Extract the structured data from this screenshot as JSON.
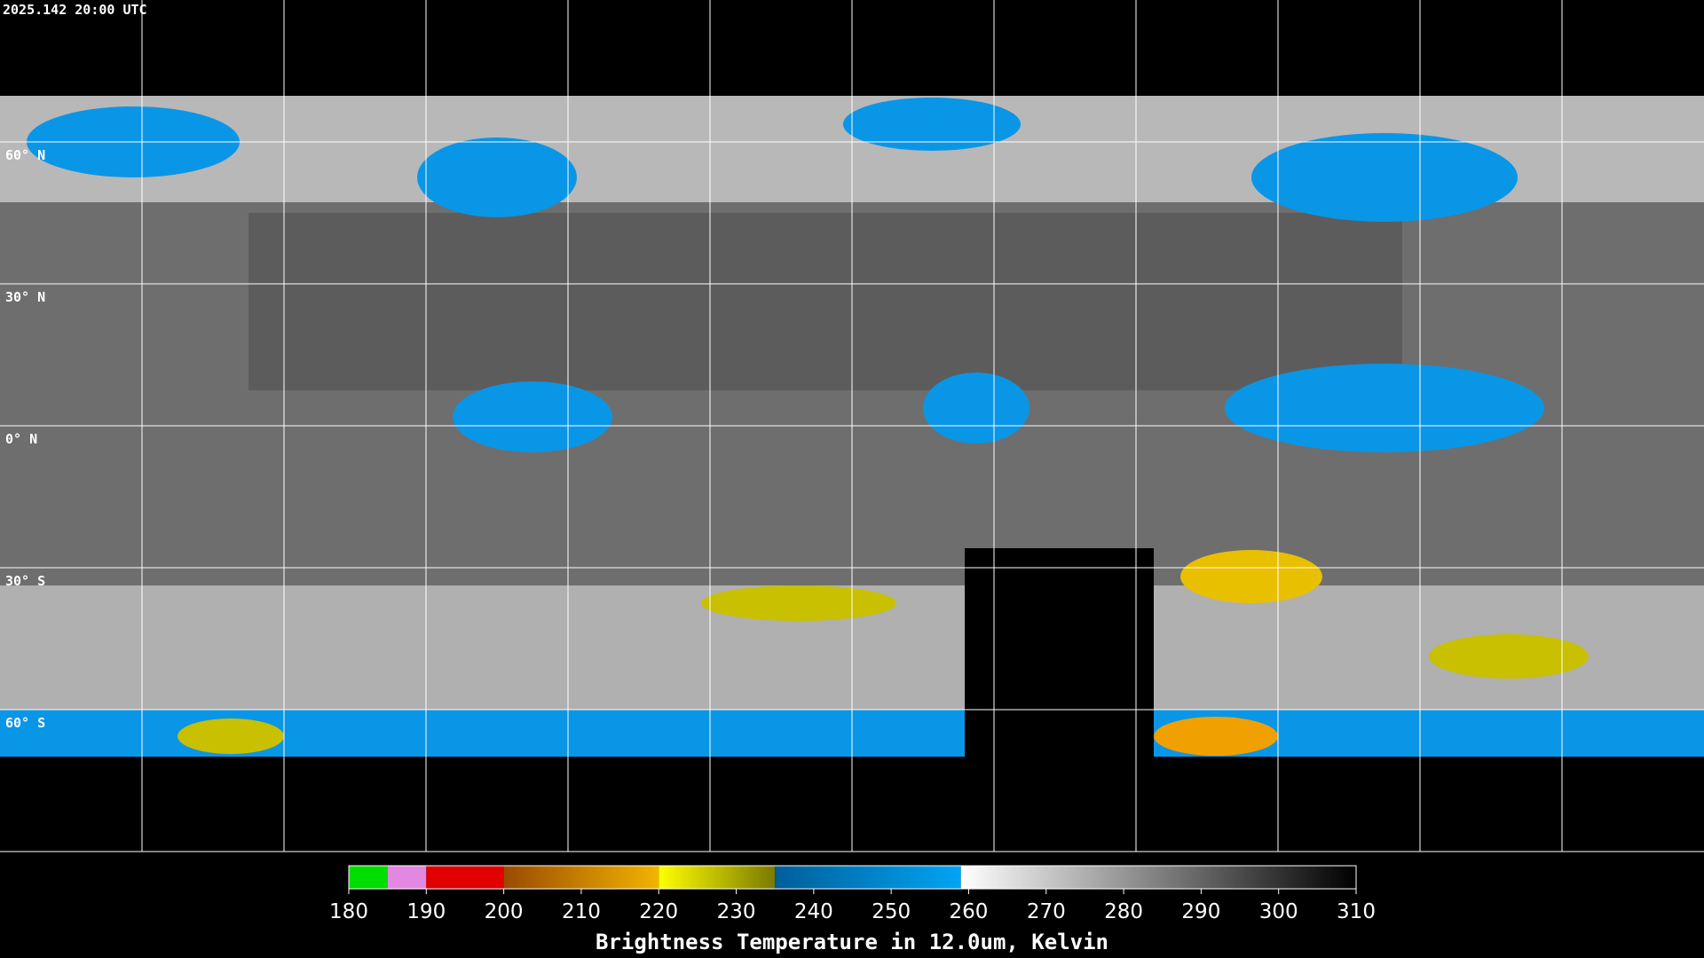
{
  "header": {
    "timestamp": "2025.142 20:00 UTC"
  },
  "map": {
    "lat_lines": [
      {
        "value": 60,
        "label": "60° N"
      },
      {
        "value": 30,
        "label": "30° N"
      },
      {
        "value": 0,
        "label": "0° N"
      },
      {
        "value": -30,
        "label": "30° S"
      },
      {
        "value": -60,
        "label": "60° S"
      }
    ]
  },
  "colorbar": {
    "title": "Brightness Temperature in 12.0um, Kelvin",
    "lim": [
      180,
      310
    ],
    "ticks": [
      180,
      190,
      200,
      210,
      220,
      230,
      240,
      250,
      260,
      270,
      280,
      290,
      300,
      310
    ],
    "segments": [
      {
        "from": 180,
        "to": 185,
        "colors": [
          "#00dd00",
          "#00dd00"
        ]
      },
      {
        "from": 185,
        "to": 190,
        "colors": [
          "#e288e2",
          "#e288e2"
        ]
      },
      {
        "from": 190,
        "to": 200,
        "colors": [
          "#e00000",
          "#e00000"
        ]
      },
      {
        "from": 200,
        "to": 220,
        "colors": [
          "#9a4a00",
          "#f2b400"
        ]
      },
      {
        "from": 220,
        "to": 235,
        "colors": [
          "#ffff00",
          "#7a7a00"
        ]
      },
      {
        "from": 235,
        "to": 259,
        "colors": [
          "#005e9a",
          "#00a4f4"
        ]
      },
      {
        "from": 259,
        "to": 310,
        "colors": [
          "#ffffff",
          "#000000"
        ]
      }
    ]
  }
}
